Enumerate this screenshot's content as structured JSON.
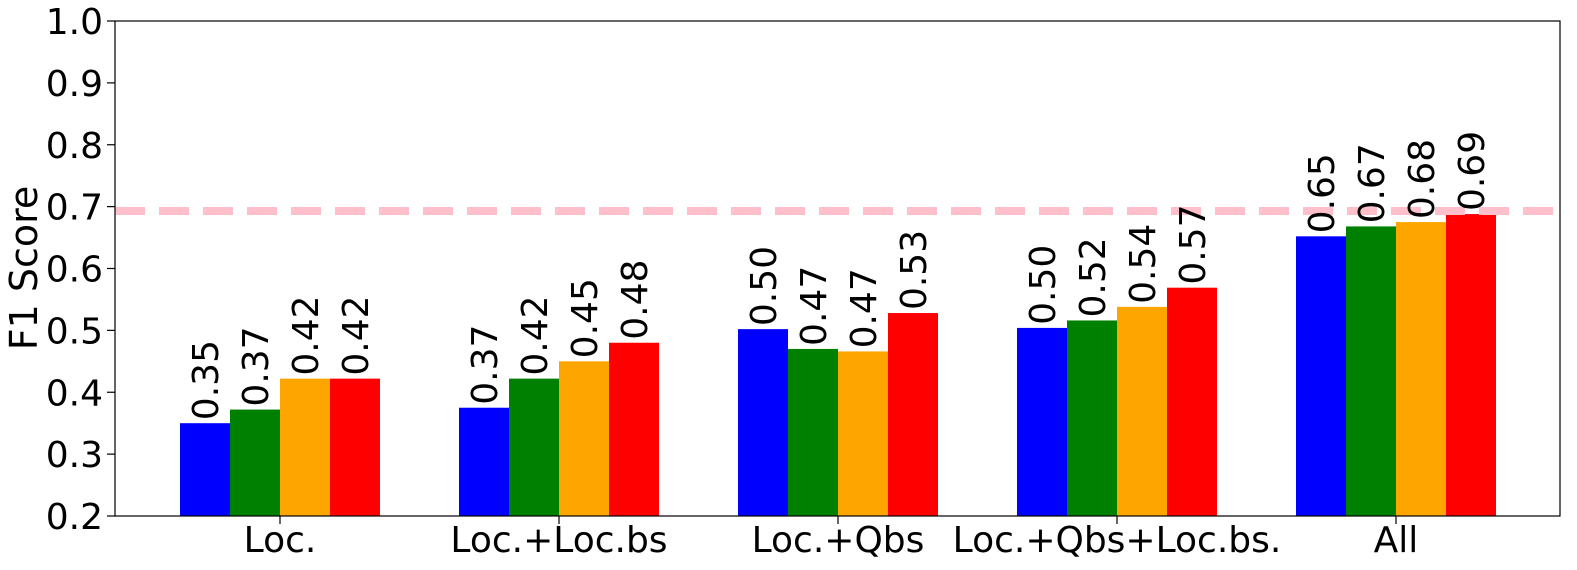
{
  "chart_data": {
    "type": "bar",
    "title": "",
    "xlabel": "",
    "ylabel": "F1 Score",
    "ylim": [
      0.2,
      1.0
    ],
    "yticks": [
      "0.2",
      "0.3",
      "0.4",
      "0.5",
      "0.6",
      "0.7",
      "0.8",
      "0.9",
      "1.0"
    ],
    "categories": [
      "Loc.",
      "Loc.+Loc.bs",
      "Loc.+Qbs",
      "Loc.+Qbs+Loc.bs.",
      "All"
    ],
    "series": [
      {
        "color": "#0000ff",
        "values": [
          0.35,
          0.375,
          0.502,
          0.504,
          0.652
        ],
        "labels": [
          "0.35",
          "0.37",
          "0.50",
          "0.50",
          "0.65"
        ]
      },
      {
        "color": "#008000",
        "values": [
          0.372,
          0.422,
          0.47,
          0.516,
          0.668
        ],
        "labels": [
          "0.37",
          "0.42",
          "0.47",
          "0.52",
          "0.67"
        ]
      },
      {
        "color": "#ffa500",
        "values": [
          0.422,
          0.45,
          0.466,
          0.538,
          0.675
        ],
        "labels": [
          "0.42",
          "0.45",
          "0.47",
          "0.54",
          "0.68"
        ]
      },
      {
        "color": "#ff0000",
        "values": [
          0.422,
          0.48,
          0.528,
          0.569,
          0.688
        ],
        "labels": [
          "0.42",
          "0.48",
          "0.53",
          "0.57",
          "0.69"
        ]
      }
    ],
    "reference_line": {
      "value": 0.693,
      "color": "#ffc0cb",
      "style": "dashed"
    },
    "grid": false,
    "legend": "none"
  }
}
